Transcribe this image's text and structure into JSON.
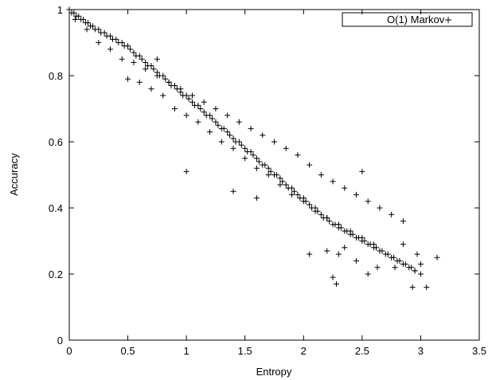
{
  "chart_data": {
    "type": "scatter",
    "title": "",
    "xlabel": "Entropy",
    "ylabel": "Accuracy",
    "xlim": [
      0,
      3.5
    ],
    "ylim": [
      0,
      1
    ],
    "xticks": [
      "0",
      "0.5",
      "1",
      "1.5",
      "2",
      "2.5",
      "3",
      "3.5"
    ],
    "yticks": [
      "0",
      "0.2",
      "0.4",
      "0.6",
      "0.8",
      "1"
    ],
    "grid": false,
    "legend_position": "top-right",
    "series": [
      {
        "name": "O(1) Markov",
        "marker": "+",
        "x": [
          0.0,
          0.02,
          0.04,
          0.06,
          0.08,
          0.1,
          0.12,
          0.14,
          0.16,
          0.18,
          0.2,
          0.22,
          0.25,
          0.27,
          0.3,
          0.32,
          0.35,
          0.37,
          0.4,
          0.42,
          0.45,
          0.47,
          0.5,
          0.52,
          0.55,
          0.57,
          0.6,
          0.62,
          0.65,
          0.67,
          0.7,
          0.72,
          0.75,
          0.77,
          0.8,
          0.82,
          0.85,
          0.87,
          0.9,
          0.92,
          0.95,
          0.97,
          1.0,
          1.02,
          1.05,
          1.07,
          1.1,
          1.12,
          1.15,
          1.17,
          1.2,
          1.22,
          1.25,
          1.27,
          1.3,
          1.32,
          1.35,
          1.37,
          1.4,
          1.42,
          1.45,
          1.47,
          1.5,
          1.52,
          1.55,
          1.57,
          1.6,
          1.62,
          1.65,
          1.67,
          1.7,
          1.72,
          1.75,
          1.77,
          1.8,
          1.82,
          1.85,
          1.87,
          1.9,
          1.92,
          1.95,
          1.97,
          2.0,
          2.02,
          2.05,
          2.07,
          2.1,
          2.12,
          2.15,
          2.17,
          2.2,
          2.22,
          2.25,
          2.27,
          2.3,
          2.32,
          2.35,
          2.37,
          2.4,
          2.42,
          2.45,
          2.47,
          2.5,
          2.52,
          2.55,
          2.57,
          2.6,
          2.62,
          2.65,
          2.67,
          2.7,
          2.72,
          2.75,
          2.77,
          2.8,
          2.82,
          2.85,
          2.87,
          2.9,
          2.92,
          2.95,
          3.0,
          0.05,
          0.15,
          0.25,
          0.35,
          0.45,
          0.55,
          0.65,
          0.75,
          0.85,
          0.95,
          1.05,
          1.15,
          1.25,
          1.35,
          1.45,
          1.55,
          1.65,
          1.75,
          1.85,
          1.95,
          2.05,
          2.15,
          2.25,
          2.35,
          2.45,
          2.55,
          2.65,
          2.75,
          2.85,
          0.6,
          0.7,
          0.8,
          0.9,
          1.0,
          1.1,
          1.2,
          1.3,
          1.4,
          1.5,
          1.6,
          1.7,
          1.8,
          1.9,
          2.0,
          2.1,
          2.2,
          2.3,
          2.4,
          2.5,
          2.6,
          0.5,
          0.75,
          1.0,
          1.4,
          1.6,
          2.05,
          2.25,
          2.28,
          2.3,
          2.45,
          2.55,
          2.63,
          2.78,
          2.93,
          2.97,
          3.0,
          3.05,
          3.14,
          2.2,
          2.35,
          2.5,
          2.85,
          2.95
        ],
        "y": [
          1.0,
          0.99,
          0.99,
          0.98,
          0.98,
          0.97,
          0.97,
          0.96,
          0.96,
          0.95,
          0.95,
          0.94,
          0.94,
          0.93,
          0.93,
          0.92,
          0.92,
          0.91,
          0.91,
          0.9,
          0.9,
          0.89,
          0.89,
          0.88,
          0.87,
          0.86,
          0.86,
          0.85,
          0.84,
          0.83,
          0.83,
          0.82,
          0.81,
          0.8,
          0.8,
          0.79,
          0.78,
          0.77,
          0.77,
          0.76,
          0.75,
          0.74,
          0.74,
          0.73,
          0.72,
          0.71,
          0.71,
          0.7,
          0.69,
          0.68,
          0.68,
          0.67,
          0.66,
          0.65,
          0.64,
          0.64,
          0.63,
          0.62,
          0.61,
          0.6,
          0.6,
          0.59,
          0.58,
          0.57,
          0.57,
          0.56,
          0.55,
          0.54,
          0.53,
          0.53,
          0.52,
          0.51,
          0.5,
          0.5,
          0.49,
          0.48,
          0.47,
          0.46,
          0.46,
          0.45,
          0.44,
          0.43,
          0.43,
          0.42,
          0.41,
          0.4,
          0.4,
          0.39,
          0.38,
          0.37,
          0.37,
          0.36,
          0.35,
          0.35,
          0.34,
          0.34,
          0.33,
          0.33,
          0.32,
          0.32,
          0.31,
          0.31,
          0.3,
          0.3,
          0.29,
          0.29,
          0.28,
          0.28,
          0.27,
          0.27,
          0.26,
          0.26,
          0.25,
          0.25,
          0.24,
          0.24,
          0.23,
          0.23,
          0.22,
          0.22,
          0.21,
          0.2,
          0.97,
          0.94,
          0.9,
          0.88,
          0.85,
          0.84,
          0.82,
          0.8,
          0.78,
          0.76,
          0.74,
          0.72,
          0.7,
          0.68,
          0.66,
          0.64,
          0.62,
          0.6,
          0.58,
          0.56,
          0.53,
          0.5,
          0.48,
          0.46,
          0.44,
          0.42,
          0.4,
          0.38,
          0.36,
          0.78,
          0.76,
          0.74,
          0.7,
          0.68,
          0.66,
          0.63,
          0.6,
          0.58,
          0.55,
          0.52,
          0.5,
          0.47,
          0.44,
          0.42,
          0.39,
          0.37,
          0.35,
          0.33,
          0.31,
          0.29,
          0.79,
          0.85,
          0.51,
          0.45,
          0.43,
          0.26,
          0.19,
          0.17,
          0.26,
          0.24,
          0.2,
          0.22,
          0.22,
          0.16,
          0.26,
          0.23,
          0.16,
          0.25,
          0.27,
          0.28,
          0.51,
          0.29,
          0.21
        ]
      }
    ]
  }
}
